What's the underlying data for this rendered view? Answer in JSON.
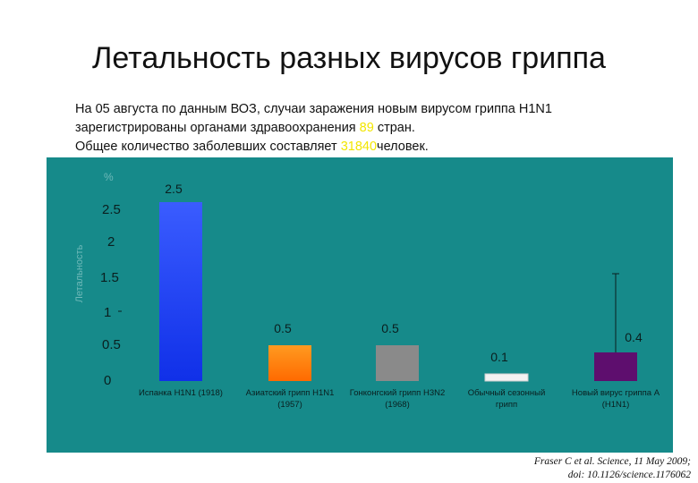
{
  "slide": {
    "title": "Летальность разных вирусов гриппа",
    "intro": {
      "line1": "На 05 августа по данным ВОЗ, случаи заражения новым вирусом гриппа H1N1",
      "line2_pre": "зарегистрированы органами здравоохранения",
      "line2_highlight": "89",
      "line2_post": "стран.",
      "line3_pre": "Общее количество заболевших составляет",
      "line3_highlight": "31840",
      "line3_post": "человек."
    },
    "highlight_color": "#f2e600",
    "panel_color": "#168a8a",
    "citation": {
      "line1": "Fraser C et al. Science, 11 May 2009;",
      "line2": "doi: 10.1126/science.1176062"
    }
  },
  "chart_data": {
    "type": "bar",
    "ylabel": "Летальность",
    "unit_label": "%",
    "ylim": [
      0,
      2.7
    ],
    "yticks": [
      "2.5",
      "2",
      "1.5",
      "1",
      "0.5",
      "0"
    ],
    "categories": [
      [
        "Испанка H1N1 (1918)"
      ],
      [
        "Азиатский грипп H1N1",
        "(1957)"
      ],
      [
        "Гонконгский грипп H3N2",
        "(1968)"
      ],
      [
        "Обычный сезонный",
        "грипп"
      ],
      [
        "Новый вирус гриппа А",
        "(H1N1)"
      ]
    ],
    "values": [
      2.5,
      0.5,
      0.5,
      0.1,
      0.4
    ],
    "value_labels": [
      "2.5",
      "0.5",
      "0.5",
      "0.1",
      "0.4"
    ],
    "error_bar": {
      "index": 4,
      "high": 1.5
    },
    "bar_colors": [
      "#1030e8",
      "#ff7f0e",
      "#8a8a8a",
      "#f2f2f2",
      "#5e0e6e"
    ],
    "grid": false,
    "legend": "none"
  }
}
